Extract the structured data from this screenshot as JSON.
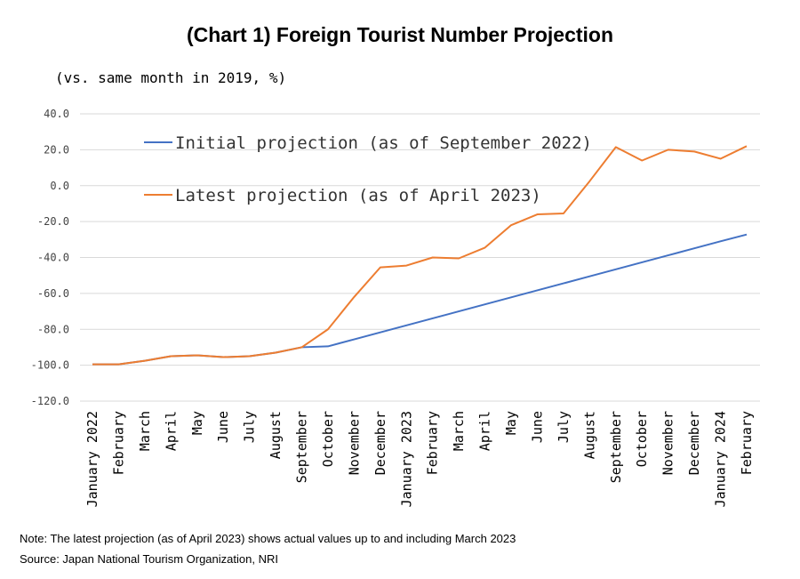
{
  "chart_data": {
    "type": "line",
    "title": "(Chart 1) Foreign Tourist Number Projection",
    "subtitle": "(vs. same month in 2019, %)",
    "ylim": [
      -120,
      40
    ],
    "yticks": [
      "40.0",
      "20.0",
      "0.0",
      "-20.0",
      "-40.0",
      "-60.0",
      "-80.0",
      "-100.0",
      "-120.0"
    ],
    "grid": true,
    "legend_position": "top-center",
    "categories": [
      "January 2022",
      "February",
      "March",
      "April",
      "May",
      "June",
      "July",
      "August",
      "September",
      "October",
      "November",
      "December",
      "January 2023",
      "February",
      "March",
      "April",
      "May",
      "June",
      "July",
      "August",
      "September",
      "October",
      "November",
      "December",
      "January 2024",
      "February"
    ],
    "series": [
      {
        "name": "Initial projection (as of September 2022)",
        "color": "#4472C4",
        "values": [
          -99.5,
          -99.5,
          -97.5,
          -95.0,
          -94.5,
          -95.5,
          -95.0,
          -93.0,
          -90.0,
          -89.5,
          -85.6,
          -81.7,
          -77.8,
          -73.9,
          -70.0,
          -66.1,
          -62.2,
          -58.3,
          -54.4,
          -50.5,
          -46.6,
          -42.7,
          -38.8,
          -34.9,
          -31.0,
          -27.2
        ]
      },
      {
        "name": "Latest projection (as of April 2023)",
        "color": "#ED7D31",
        "values": [
          -99.5,
          -99.5,
          -97.5,
          -95.0,
          -94.5,
          -95.5,
          -95.0,
          -93.0,
          -90.0,
          -80.0,
          -62.0,
          -45.5,
          -44.5,
          -40.0,
          -40.5,
          -34.5,
          -22.0,
          -16.0,
          -15.5,
          2.5,
          21.5,
          14.0,
          20.0,
          19.0,
          15.0,
          22.0
        ]
      }
    ]
  },
  "notes": {
    "note": "Note: The latest projection (as of April 2023) shows actual values up to and including March 2023",
    "source": "Source: Japan National Tourism Organization, NRI"
  }
}
